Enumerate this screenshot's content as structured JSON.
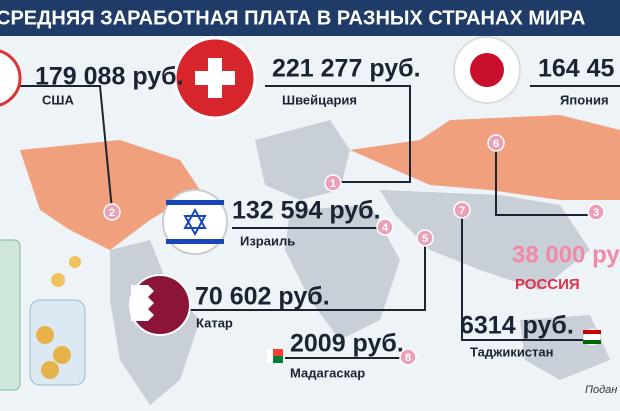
{
  "header": {
    "title": "СРЕДНЯЯ ЗАРАБОТНАЯ ПЛАТА В РАЗНЫХ СТРАНАХ МИРА"
  },
  "countries": [
    {
      "value": "179 088 руб.",
      "country": "США"
    },
    {
      "value": "221 277 руб.",
      "country": "Швейцария"
    },
    {
      "value": "164 45",
      "country": "Япония"
    },
    {
      "value": "132 594 руб.",
      "country": "Израиль"
    },
    {
      "value": "70 602 руб.",
      "country": "Катар"
    },
    {
      "value": "2009 руб.",
      "country": "Мадагаскар"
    },
    {
      "value": "6314 руб.",
      "country": "Таджикистан"
    }
  ],
  "russia": {
    "value": "38 000 ру",
    "country": "РОССИЯ"
  },
  "markers": [
    "1",
    "2",
    "3",
    "4",
    "5",
    "6",
    "7",
    "8"
  ],
  "footer": {
    "source": "Подан"
  }
}
